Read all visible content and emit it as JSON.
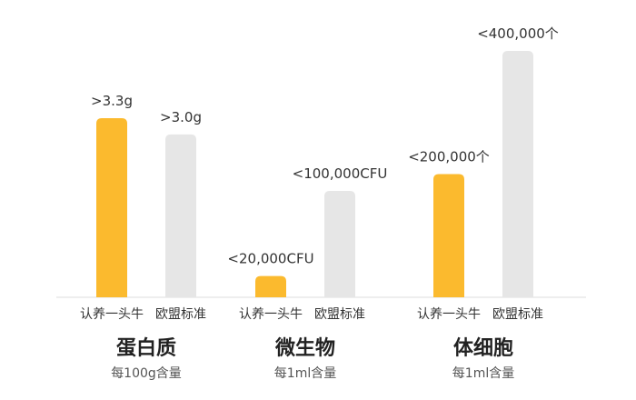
{
  "chart_data": {
    "type": "bar",
    "colors": {
      "highlight": "#FBBA2E",
      "baseline": "#E6E6E6",
      "axis": "#DDDDDD"
    },
    "groups": [
      {
        "title": "蛋白质",
        "subtitle": "每100g含量",
        "bars": [
          {
            "name": "认养一头牛",
            "value": 3.3,
            "label": ">3.3g",
            "highlight": true
          },
          {
            "name": "欧盟标准",
            "value": 3.0,
            "label": ">3.0g",
            "highlight": false
          }
        ]
      },
      {
        "title": "微生物",
        "subtitle": "每1ml含量",
        "bars": [
          {
            "name": "认养一头牛",
            "value": 20000,
            "label": "<20,000CFU",
            "highlight": true
          },
          {
            "name": "欧盟标准",
            "value": 100000,
            "label": "<100,000CFU",
            "highlight": false
          }
        ]
      },
      {
        "title": "体细胞",
        "subtitle": "每1ml含量",
        "bars": [
          {
            "name": "认养一头牛",
            "value": 200000,
            "label": "<200,000个",
            "highlight": true
          },
          {
            "name": "欧盟标准",
            "value": 400000,
            "label": "<400,000个",
            "highlight": false
          }
        ]
      }
    ]
  }
}
